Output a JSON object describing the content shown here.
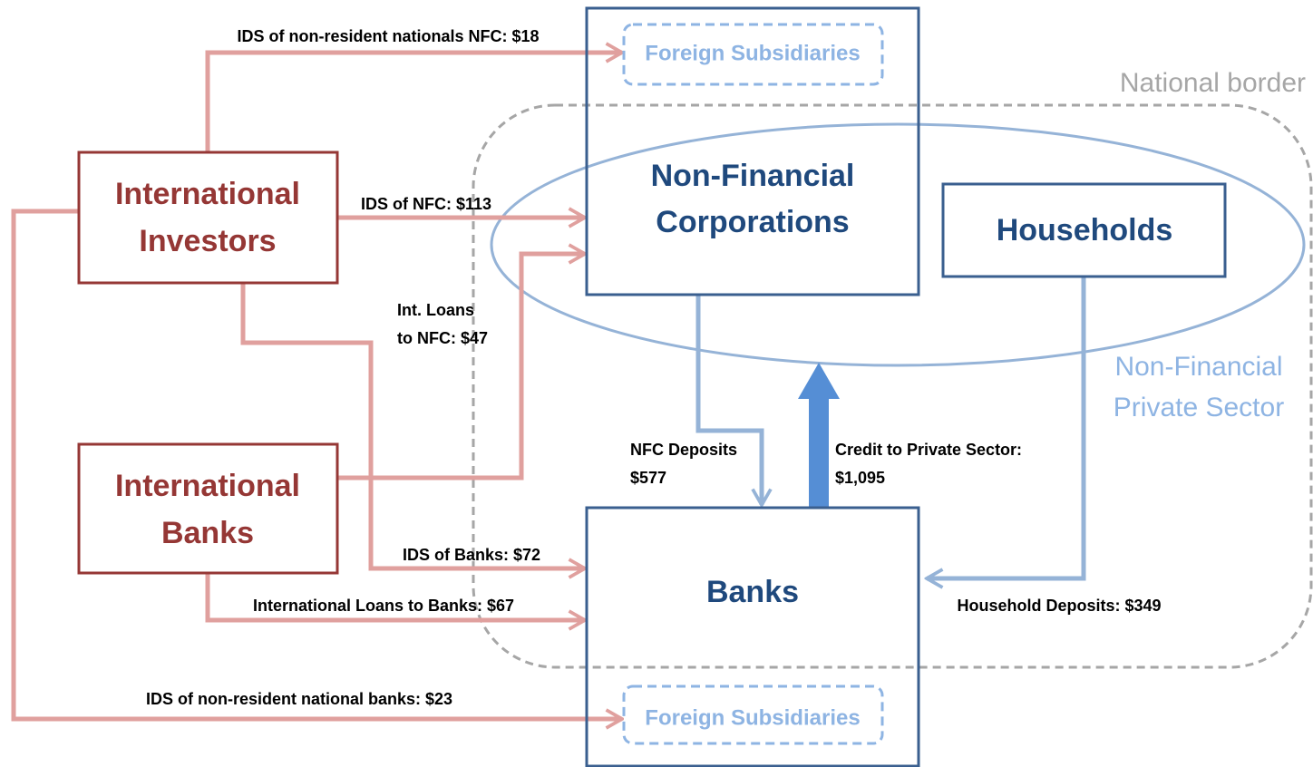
{
  "nodes": [
    {
      "lines": [
        "International",
        "Investors"
      ]
    },
    {
      "lines": [
        "International",
        "Banks"
      ]
    },
    {
      "lines": [
        "Non-Financial",
        "Corporations"
      ]
    },
    {
      "lines": [
        "Households"
      ]
    },
    {
      "lines": [
        "Banks"
      ]
    },
    {
      "lines": [
        "Foreign Subsidiaries"
      ]
    },
    {
      "lines": [
        "Foreign Subsidiaries"
      ]
    }
  ],
  "regions": [
    {
      "lines": [
        "National border"
      ]
    },
    {
      "lines": [
        "Non-Financial",
        "Private Sector"
      ]
    }
  ],
  "edges": [
    {
      "lines": [
        "IDS of non-resident nationals NFC: $18"
      ]
    },
    {
      "lines": [
        "IDS of NFC: $113"
      ]
    },
    {
      "lines": [
        "Int. Loans",
        "to NFC: $47"
      ]
    },
    {
      "lines": [
        "IDS of Banks: $72"
      ]
    },
    {
      "lines": [
        "International Loans to Banks: $67"
      ]
    },
    {
      "lines": [
        "IDS of non-resident national banks: $23"
      ]
    },
    {
      "lines": [
        "NFC Deposits",
        "$577"
      ]
    },
    {
      "lines": [
        "Credit to Private Sector:",
        "$1,095"
      ]
    },
    {
      "lines": [
        "Household Deposits: $349"
      ]
    }
  ]
}
